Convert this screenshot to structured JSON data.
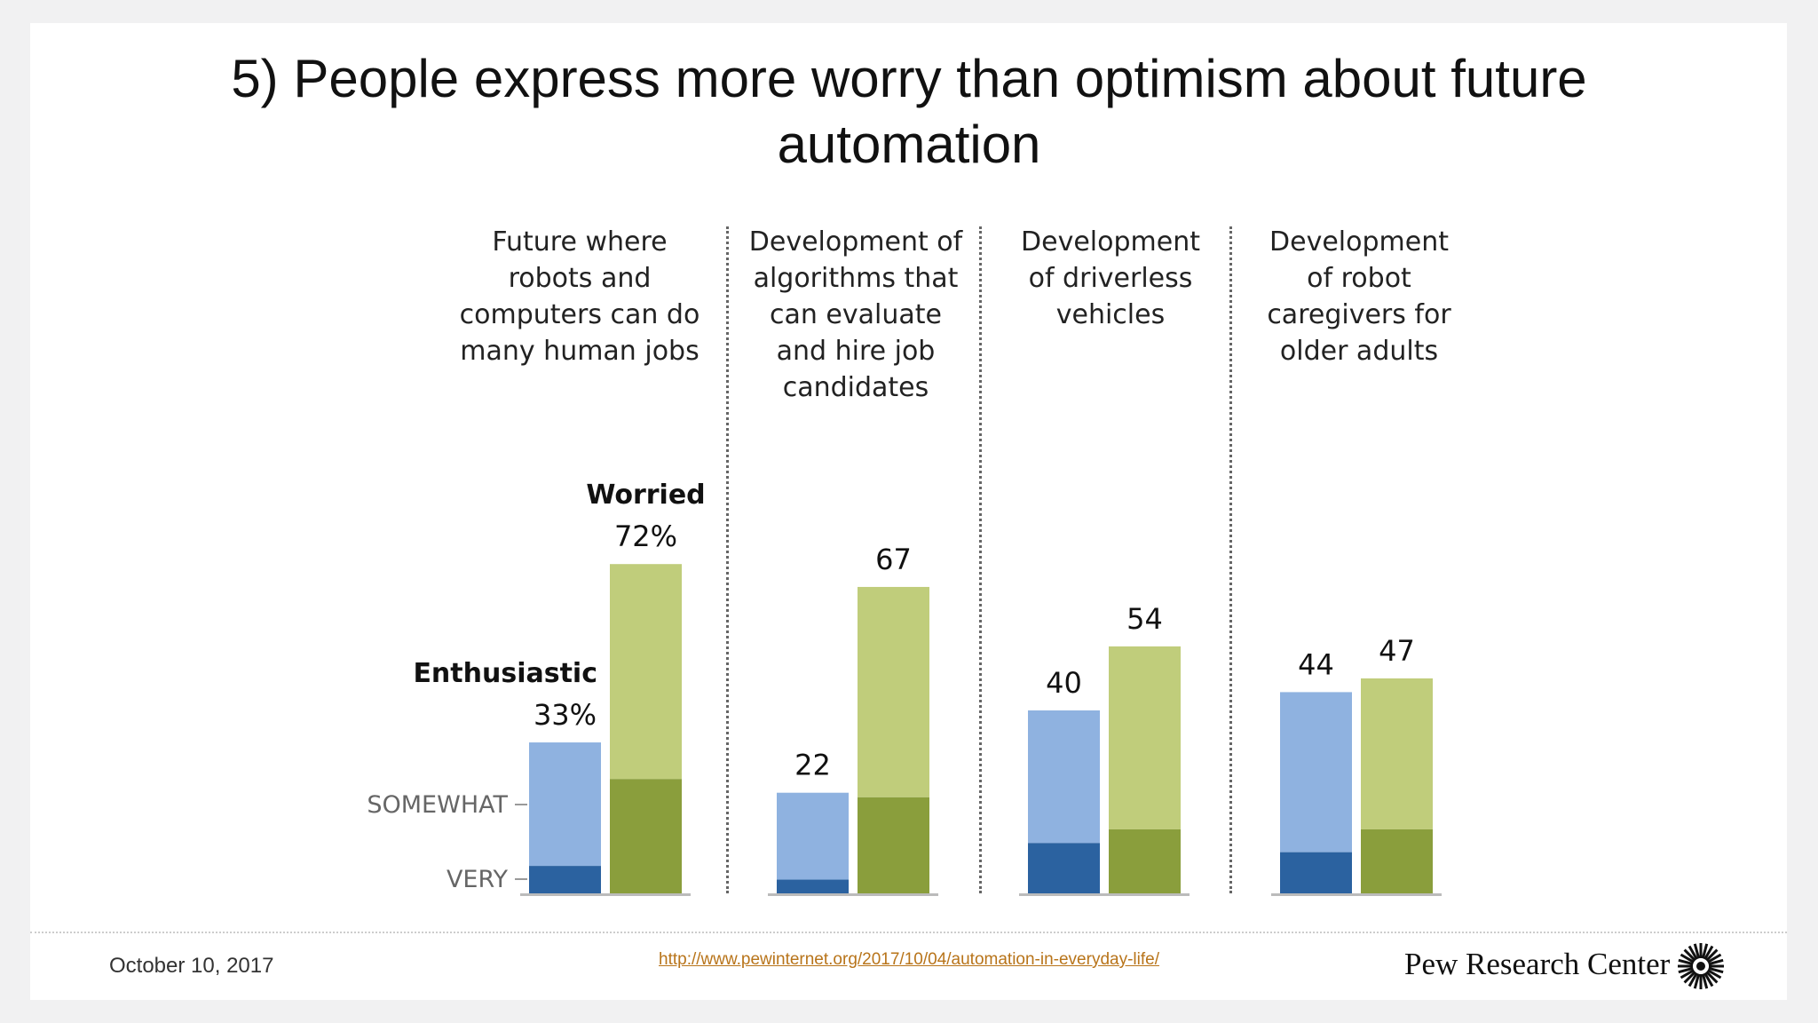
{
  "title": [
    "5) People express more worry than optimism about future",
    "automation"
  ],
  "chart_data": {
    "type": "bar",
    "stacked": true,
    "categories": [
      [
        "Future where",
        "robots and",
        "computers can do",
        "many human jobs"
      ],
      [
        "Development of",
        "algorithms that",
        "can evaluate",
        "and hire job",
        "candidates"
      ],
      [
        "Development",
        "of driverless",
        "vehicles"
      ],
      [
        "Development",
        "of robot",
        "caregivers for",
        "older adults"
      ]
    ],
    "series": [
      {
        "name": "Enthusiastic",
        "total": [
          33,
          22,
          40,
          44
        ],
        "very": [
          6,
          3,
          11,
          9
        ],
        "labels": [
          "33%",
          "22",
          "40",
          "44"
        ]
      },
      {
        "name": "Worried",
        "total": [
          72,
          67,
          54,
          47
        ],
        "very": [
          25,
          21,
          14,
          14
        ],
        "labels": [
          "72%",
          "67",
          "54",
          "47"
        ]
      }
    ],
    "axis_labels": {
      "somewhat": "SOMEWHAT",
      "very": "VERY"
    },
    "ylim": [
      0,
      80
    ],
    "colors": {
      "enth_very": "#2b62a0",
      "enth_somewhat": "#8fb2e0",
      "worr_very": "#8a9e3c",
      "worr_somewhat": "#c0cd7b"
    }
  },
  "footer": {
    "date": "October 10, 2017",
    "url": "http://www.pewinternet.org/2017/10/04/automation-in-everyday-life/",
    "brand": "Pew Research Center"
  }
}
